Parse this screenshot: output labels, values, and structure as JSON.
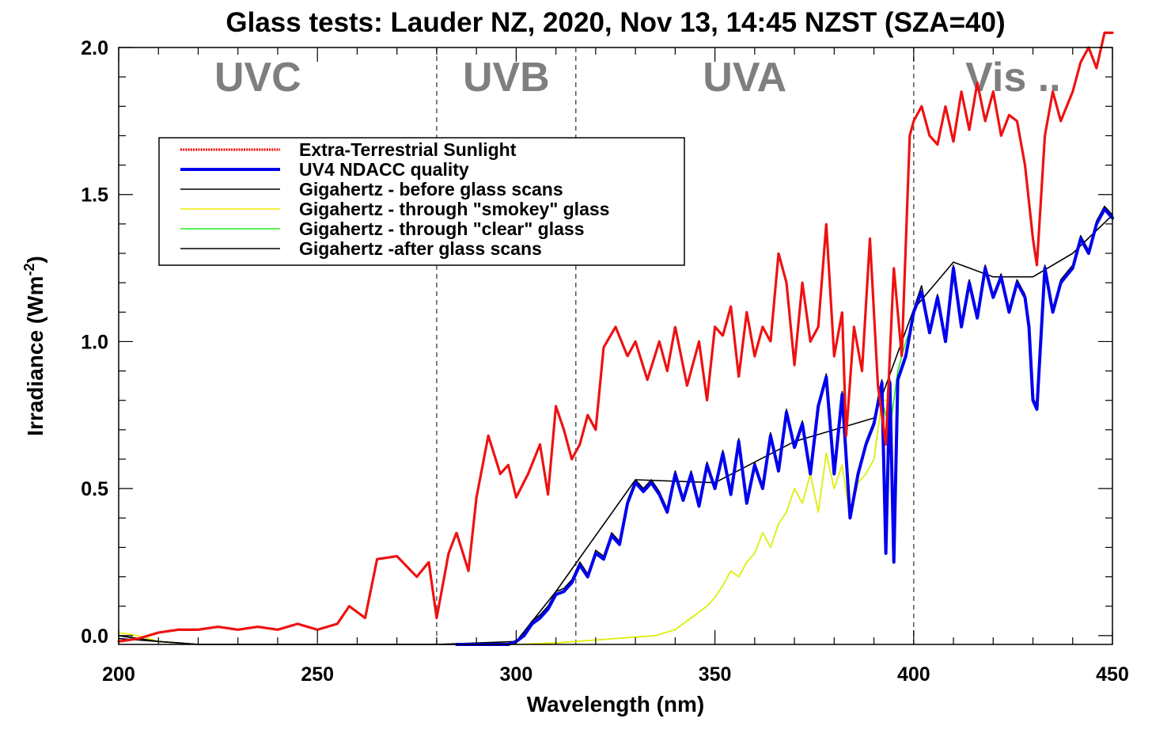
{
  "chart_data": {
    "type": "line",
    "title": "Glass tests: Lauder NZ, 2020, Nov 13, 14:45 NZST (SZA=40)",
    "xlabel": "Wavelength (nm)",
    "ylabel_main": "Irradiance (Wm",
    "ylabel_sup": "-2",
    "ylabel_close": ")",
    "xlim": [
      200,
      450
    ],
    "ylim": [
      -0.03,
      2.0
    ],
    "xticks": [
      200,
      250,
      300,
      350,
      400,
      450
    ],
    "xtick_labels": [
      "200",
      "250",
      "300",
      "350",
      "400",
      "450"
    ],
    "yticks": [
      0.0,
      0.5,
      1.0,
      1.5,
      2.0
    ],
    "ytick_labels": [
      "0.0",
      "0.5",
      "1.0",
      "1.5",
      "2.0"
    ],
    "band_dividers": [
      280,
      315,
      400
    ],
    "band_labels": [
      {
        "text": "UVC",
        "x": 235
      },
      {
        "text": "UVB",
        "x": 297.5
      },
      {
        "text": "UVA",
        "x": 357.5
      },
      {
        "text": "Vis ..",
        "x": 425
      }
    ],
    "legend_position": "upper-left",
    "series": [
      {
        "name": "Extra-Terrestrial Sunlight",
        "color": "#ee1111",
        "style": "dotted-thick",
        "x": [
          200,
          205,
          210,
          215,
          220,
          225,
          230,
          235,
          240,
          245,
          250,
          255,
          258,
          262,
          265,
          270,
          275,
          278,
          280,
          283,
          285,
          288,
          290,
          293,
          296,
          298,
          300,
          303,
          306,
          308,
          310,
          312,
          314,
          316,
          318,
          320,
          322,
          325,
          328,
          330,
          333,
          336,
          338,
          340,
          343,
          346,
          348,
          350,
          352,
          354,
          356,
          358,
          360,
          362,
          364,
          366,
          368,
          370,
          372,
          374,
          376,
          378,
          380,
          382,
          383,
          385,
          387,
          389,
          391,
          393,
          395,
          397,
          399,
          400,
          402,
          404,
          406,
          408,
          410,
          412,
          414,
          416,
          418,
          420,
          422,
          424,
          426,
          428,
          430,
          431,
          433,
          435,
          437,
          440,
          442,
          444,
          446,
          448,
          450
        ],
        "y": [
          -0.02,
          -0.01,
          0.01,
          0.02,
          0.02,
          0.03,
          0.02,
          0.03,
          0.02,
          0.04,
          0.02,
          0.04,
          0.1,
          0.06,
          0.26,
          0.27,
          0.2,
          0.25,
          0.06,
          0.28,
          0.35,
          0.22,
          0.47,
          0.68,
          0.55,
          0.58,
          0.47,
          0.55,
          0.65,
          0.48,
          0.78,
          0.7,
          0.6,
          0.65,
          0.75,
          0.7,
          0.98,
          1.05,
          0.95,
          1.0,
          0.87,
          1.0,
          0.9,
          1.05,
          0.85,
          1.0,
          0.8,
          1.05,
          1.02,
          1.12,
          0.88,
          1.1,
          0.95,
          1.05,
          1.0,
          1.3,
          1.2,
          0.92,
          1.2,
          1.0,
          1.05,
          1.4,
          0.95,
          1.1,
          0.68,
          1.05,
          0.9,
          1.35,
          0.85,
          0.65,
          1.25,
          0.95,
          1.7,
          1.75,
          1.8,
          1.7,
          1.67,
          1.8,
          1.68,
          1.85,
          1.72,
          1.88,
          1.75,
          1.85,
          1.7,
          1.77,
          1.75,
          1.6,
          1.35,
          1.26,
          1.7,
          1.85,
          1.75,
          1.85,
          1.95,
          2.0,
          1.93,
          2.05,
          2.05
        ]
      },
      {
        "name": "UV4 NDACC quality",
        "color": "#0000ee",
        "style": "solid-thick",
        "x": [
          285,
          290,
          295,
          298,
          300,
          302,
          304,
          306,
          308,
          310,
          312,
          314,
          316,
          318,
          320,
          322,
          324,
          326,
          328,
          330,
          332,
          334,
          336,
          338,
          340,
          342,
          344,
          346,
          348,
          350,
          352,
          354,
          356,
          358,
          360,
          362,
          364,
          366,
          368,
          370,
          372,
          374,
          376,
          378,
          380,
          382,
          384,
          386,
          388,
          390,
          392,
          393,
          394,
          395,
          396,
          398,
          400,
          402,
          404,
          406,
          408,
          410,
          412,
          414,
          416,
          418,
          420,
          422,
          424,
          426,
          428,
          429,
          430,
          431,
          433,
          435,
          437,
          440,
          442,
          444,
          446,
          448,
          450
        ],
        "y": [
          -0.03,
          -0.03,
          -0.03,
          -0.03,
          -0.02,
          0.0,
          0.04,
          0.06,
          0.09,
          0.14,
          0.15,
          0.18,
          0.24,
          0.2,
          0.28,
          0.26,
          0.34,
          0.31,
          0.45,
          0.52,
          0.49,
          0.52,
          0.48,
          0.42,
          0.55,
          0.46,
          0.55,
          0.44,
          0.58,
          0.5,
          0.62,
          0.48,
          0.66,
          0.45,
          0.58,
          0.5,
          0.68,
          0.56,
          0.76,
          0.64,
          0.72,
          0.55,
          0.78,
          0.88,
          0.55,
          0.82,
          0.4,
          0.55,
          0.65,
          0.72,
          0.86,
          0.28,
          0.86,
          0.25,
          0.87,
          0.95,
          1.1,
          1.17,
          1.03,
          1.15,
          1.0,
          1.25,
          1.05,
          1.2,
          1.08,
          1.25,
          1.15,
          1.22,
          1.1,
          1.2,
          1.15,
          1.05,
          0.8,
          0.77,
          1.25,
          1.1,
          1.2,
          1.25,
          1.35,
          1.3,
          1.4,
          1.45,
          1.42
        ]
      },
      {
        "name": "Gigahertz - before glass scans",
        "color": "#000000",
        "style": "solid-thin",
        "x": [
          200,
          205,
          210,
          215,
          220,
          230,
          240,
          250,
          260,
          270,
          280,
          290,
          298,
          300,
          302,
          304,
          306,
          308,
          310,
          312,
          314,
          316,
          318,
          320,
          322,
          324,
          326,
          328,
          330,
          332,
          334,
          336,
          338,
          340,
          342,
          344,
          346,
          348,
          350,
          352,
          354,
          356,
          358,
          360,
          362,
          364,
          366,
          368,
          370,
          372,
          374,
          376,
          378,
          380,
          382,
          384,
          386,
          388,
          390,
          392,
          393,
          394,
          395,
          396,
          398,
          400,
          402,
          404,
          406,
          408,
          410,
          412,
          414,
          416,
          418,
          420,
          422,
          424,
          426,
          428,
          429,
          430,
          431,
          433,
          435,
          437,
          440,
          442,
          444,
          446,
          448,
          450
        ],
        "y": [
          0.0,
          -0.01,
          -0.02,
          -0.025,
          -0.03,
          -0.03,
          -0.03,
          -0.03,
          -0.03,
          -0.03,
          -0.03,
          -0.03,
          -0.03,
          -0.02,
          0.01,
          0.05,
          0.07,
          0.1,
          0.15,
          0.16,
          0.19,
          0.25,
          0.21,
          0.29,
          0.27,
          0.35,
          0.32,
          0.46,
          0.53,
          0.5,
          0.53,
          0.49,
          0.43,
          0.56,
          0.47,
          0.56,
          0.45,
          0.59,
          0.51,
          0.63,
          0.49,
          0.67,
          0.46,
          0.59,
          0.51,
          0.69,
          0.57,
          0.77,
          0.65,
          0.73,
          0.56,
          0.79,
          0.89,
          0.56,
          0.83,
          0.41,
          0.56,
          0.66,
          0.73,
          0.87,
          0.29,
          0.87,
          0.26,
          0.88,
          0.96,
          1.11,
          1.19,
          1.04,
          1.16,
          1.01,
          1.26,
          1.06,
          1.21,
          1.09,
          1.26,
          1.16,
          1.23,
          1.11,
          1.21,
          1.16,
          1.06,
          0.81,
          0.78,
          1.26,
          1.11,
          1.21,
          1.26,
          1.36,
          1.31,
          1.41,
          1.46,
          1.43
        ]
      },
      {
        "name": "Gigahertz - through \"smokey\" glass",
        "color": "#eeee00",
        "style": "solid-thin",
        "x": [
          200,
          205,
          210,
          215,
          220,
          230,
          250,
          280,
          300,
          310,
          320,
          325,
          330,
          335,
          340,
          343,
          346,
          348,
          350,
          352,
          354,
          356,
          358,
          360,
          362,
          364,
          366,
          368,
          370,
          372,
          374,
          376,
          378,
          380,
          382,
          384,
          386,
          388,
          390,
          392,
          393
        ],
        "y": [
          0.01,
          0.0,
          -0.02,
          -0.025,
          -0.03,
          -0.03,
          -0.03,
          -0.03,
          -0.03,
          -0.025,
          -0.015,
          -0.01,
          -0.005,
          0.0,
          0.02,
          0.05,
          0.08,
          0.1,
          0.13,
          0.17,
          0.22,
          0.2,
          0.25,
          0.28,
          0.35,
          0.3,
          0.38,
          0.42,
          0.5,
          0.45,
          0.55,
          0.42,
          0.62,
          0.5,
          0.58,
          0.4,
          0.52,
          0.55,
          0.6,
          0.8,
          0.8
        ]
      },
      {
        "name": "Gigahertz - through \"clear\" glass",
        "color": "#22ee22",
        "style": "solid-thin",
        "x": [
          200,
          205,
          210,
          215,
          220,
          230,
          250,
          280,
          300,
          310,
          320,
          325,
          330,
          335,
          340,
          343,
          346,
          348,
          350,
          352,
          354,
          356,
          358,
          360,
          362,
          364,
          366,
          368,
          370,
          372,
          374,
          376,
          378,
          380,
          382,
          384,
          386,
          388,
          390,
          392,
          394,
          396,
          398,
          400
        ],
        "y": [
          0.0,
          -0.01,
          -0.02,
          -0.025,
          -0.03,
          -0.03,
          -0.03,
          -0.03,
          -0.03,
          -0.025,
          -0.015,
          -0.01,
          -0.005,
          0.0,
          0.02,
          0.05,
          0.08,
          0.1,
          0.13,
          0.17,
          0.22,
          0.2,
          0.25,
          0.28,
          0.35,
          0.3,
          0.38,
          0.42,
          0.5,
          0.45,
          0.55,
          0.42,
          0.62,
          0.5,
          0.58,
          0.4,
          0.52,
          0.55,
          0.6,
          0.8,
          0.7,
          0.9,
          1.0,
          1.07
        ]
      },
      {
        "name": "Gigahertz -after glass scans",
        "color": "#000000",
        "style": "solid-thin",
        "x": [
          200,
          210,
          220,
          250,
          280,
          300,
          310,
          330,
          350,
          370,
          390,
          400,
          410,
          420,
          430,
          440,
          450
        ],
        "y": [
          -0.01,
          -0.02,
          -0.03,
          -0.03,
          -0.03,
          -0.02,
          0.15,
          0.53,
          0.52,
          0.66,
          0.74,
          1.11,
          1.27,
          1.22,
          1.22,
          1.3,
          1.43
        ]
      }
    ]
  }
}
